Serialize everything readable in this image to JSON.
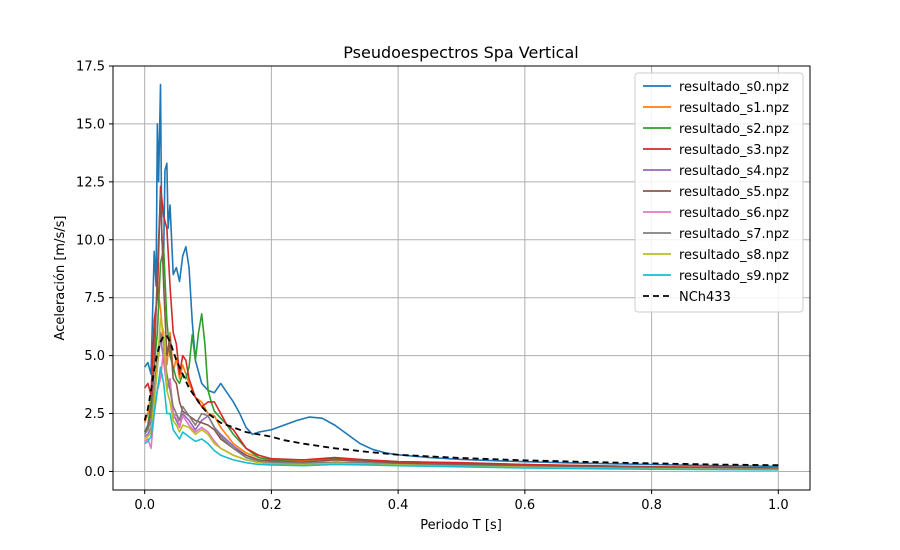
{
  "chart_data": {
    "type": "line",
    "title": "Pseudoespectros Spa Vertical",
    "xlabel": "Periodo T [s]",
    "ylabel": "Aceleración [m/s/s]",
    "xlim": [
      -0.05,
      1.05
    ],
    "ylim": [
      -0.8,
      17.5
    ],
    "xticks": [
      0.0,
      0.2,
      0.4,
      0.6,
      0.8,
      1.0
    ],
    "xtick_labels": [
      "0.0",
      "0.2",
      "0.4",
      "0.6",
      "0.8",
      "1.0"
    ],
    "yticks": [
      0.0,
      2.5,
      5.0,
      7.5,
      10.0,
      12.5,
      15.0,
      17.5
    ],
    "ytick_labels": [
      "0.0",
      "2.5",
      "5.0",
      "7.5",
      "10.0",
      "12.5",
      "15.0",
      "17.5"
    ],
    "grid": true,
    "legend_position": "top-right",
    "series": [
      {
        "name": "resultado_s0.npz",
        "color": "#1f77b4",
        "dash": "",
        "x": [
          0.0,
          0.005,
          0.01,
          0.015,
          0.018,
          0.02,
          0.022,
          0.025,
          0.027,
          0.03,
          0.032,
          0.035,
          0.037,
          0.04,
          0.045,
          0.05,
          0.055,
          0.06,
          0.065,
          0.07,
          0.075,
          0.08,
          0.09,
          0.1,
          0.11,
          0.12,
          0.13,
          0.14,
          0.15,
          0.16,
          0.17,
          0.18,
          0.2,
          0.22,
          0.24,
          0.26,
          0.28,
          0.3,
          0.32,
          0.34,
          0.36,
          0.38,
          0.4,
          0.45,
          0.5,
          0.6,
          0.7,
          0.8,
          0.9,
          1.0
        ],
        "y": [
          4.5,
          4.7,
          4.2,
          9.5,
          8.0,
          15.0,
          12.5,
          16.7,
          10.0,
          9.5,
          13.0,
          13.3,
          10.5,
          11.5,
          8.5,
          8.8,
          8.2,
          9.3,
          9.7,
          8.8,
          6.5,
          4.8,
          3.8,
          3.5,
          3.4,
          3.8,
          3.4,
          3.0,
          2.5,
          1.9,
          1.6,
          1.7,
          1.8,
          2.0,
          2.2,
          2.35,
          2.3,
          2.0,
          1.6,
          1.2,
          0.95,
          0.8,
          0.72,
          0.6,
          0.52,
          0.42,
          0.35,
          0.3,
          0.25,
          0.22
        ]
      },
      {
        "name": "resultado_s1.npz",
        "color": "#ff7f0e",
        "dash": "",
        "x": [
          0.0,
          0.005,
          0.01,
          0.015,
          0.02,
          0.025,
          0.03,
          0.035,
          0.04,
          0.045,
          0.05,
          0.055,
          0.06,
          0.07,
          0.08,
          0.09,
          0.1,
          0.11,
          0.12,
          0.14,
          0.16,
          0.18,
          0.2,
          0.25,
          0.3,
          0.35,
          0.4,
          0.5,
          0.6,
          0.7,
          0.8,
          0.9,
          1.0
        ],
        "y": [
          2.1,
          2.5,
          3.4,
          5.5,
          8.0,
          7.0,
          5.5,
          4.6,
          6.0,
          4.3,
          4.9,
          4.0,
          4.6,
          3.8,
          3.2,
          3.0,
          2.5,
          2.4,
          1.9,
          1.2,
          0.8,
          0.6,
          0.5,
          0.45,
          0.5,
          0.45,
          0.4,
          0.35,
          0.3,
          0.25,
          0.2,
          0.18,
          0.15
        ]
      },
      {
        "name": "resultado_s2.npz",
        "color": "#2ca02c",
        "dash": "",
        "x": [
          0.0,
          0.005,
          0.01,
          0.015,
          0.02,
          0.025,
          0.03,
          0.035,
          0.04,
          0.045,
          0.05,
          0.055,
          0.06,
          0.065,
          0.07,
          0.075,
          0.08,
          0.085,
          0.09,
          0.095,
          0.1,
          0.105,
          0.11,
          0.12,
          0.13,
          0.14,
          0.16,
          0.18,
          0.2,
          0.25,
          0.3,
          0.35,
          0.4,
          0.5,
          0.6,
          0.7,
          0.8,
          0.9,
          1.0
        ],
        "y": [
          1.7,
          2.0,
          3.0,
          4.5,
          6.0,
          9.0,
          9.6,
          6.5,
          5.0,
          4.5,
          4.0,
          3.8,
          4.2,
          4.0,
          4.5,
          5.9,
          4.8,
          6.0,
          6.8,
          5.5,
          3.5,
          3.0,
          2.6,
          2.3,
          2.0,
          1.6,
          1.0,
          0.6,
          0.5,
          0.5,
          0.55,
          0.5,
          0.42,
          0.35,
          0.28,
          0.22,
          0.18,
          0.15,
          0.12
        ]
      },
      {
        "name": "resultado_s3.npz",
        "color": "#d62728",
        "dash": "",
        "x": [
          0.0,
          0.005,
          0.01,
          0.015,
          0.02,
          0.025,
          0.03,
          0.035,
          0.04,
          0.045,
          0.05,
          0.055,
          0.06,
          0.065,
          0.07,
          0.075,
          0.08,
          0.09,
          0.1,
          0.11,
          0.12,
          0.13,
          0.14,
          0.16,
          0.18,
          0.2,
          0.25,
          0.3,
          0.35,
          0.4,
          0.5,
          0.6,
          0.7,
          0.8,
          0.9,
          1.0
        ],
        "y": [
          3.6,
          3.8,
          3.3,
          6.5,
          7.5,
          12.3,
          11.0,
          10.5,
          8.0,
          6.0,
          5.5,
          4.2,
          5.0,
          4.8,
          4.0,
          3.6,
          3.2,
          2.8,
          3.0,
          3.0,
          2.5,
          2.0,
          1.8,
          1.0,
          0.7,
          0.55,
          0.5,
          0.6,
          0.5,
          0.42,
          0.38,
          0.3,
          0.25,
          0.2,
          0.18,
          0.15
        ]
      },
      {
        "name": "resultado_s4.npz",
        "color": "#9467bd",
        "dash": "",
        "x": [
          0.0,
          0.005,
          0.01,
          0.015,
          0.02,
          0.025,
          0.03,
          0.035,
          0.04,
          0.045,
          0.05,
          0.055,
          0.06,
          0.07,
          0.08,
          0.09,
          0.1,
          0.11,
          0.12,
          0.14,
          0.16,
          0.18,
          0.2,
          0.25,
          0.3,
          0.35,
          0.4,
          0.5,
          0.6,
          0.7,
          0.8,
          0.9,
          1.0
        ],
        "y": [
          1.5,
          1.6,
          1.9,
          3.0,
          4.5,
          5.8,
          4.8,
          3.6,
          4.0,
          2.5,
          2.2,
          1.9,
          2.5,
          2.2,
          1.8,
          2.2,
          2.4,
          1.9,
          1.6,
          1.1,
          0.7,
          0.5,
          0.4,
          0.35,
          0.4,
          0.38,
          0.3,
          0.25,
          0.2,
          0.17,
          0.14,
          0.12,
          0.1
        ]
      },
      {
        "name": "resultado_s5.npz",
        "color": "#8c564b",
        "dash": "",
        "x": [
          0.0,
          0.005,
          0.01,
          0.015,
          0.02,
          0.025,
          0.03,
          0.035,
          0.04,
          0.045,
          0.05,
          0.055,
          0.06,
          0.07,
          0.08,
          0.09,
          0.1,
          0.11,
          0.12,
          0.14,
          0.16,
          0.18,
          0.2,
          0.25,
          0.3,
          0.35,
          0.4,
          0.5,
          0.6,
          0.7,
          0.8,
          0.9,
          1.0
        ],
        "y": [
          1.7,
          1.9,
          2.6,
          4.5,
          8.6,
          12.0,
          8.0,
          5.0,
          5.8,
          4.0,
          3.8,
          3.0,
          2.6,
          2.4,
          2.2,
          2.1,
          2.0,
          1.8,
          1.4,
          1.0,
          0.7,
          0.5,
          0.45,
          0.4,
          0.5,
          0.45,
          0.35,
          0.3,
          0.25,
          0.2,
          0.18,
          0.15,
          0.12
        ]
      },
      {
        "name": "resultado_s6.npz",
        "color": "#e377c2",
        "dash": "",
        "x": [
          0.0,
          0.005,
          0.01,
          0.015,
          0.02,
          0.025,
          0.03,
          0.035,
          0.04,
          0.045,
          0.05,
          0.055,
          0.06,
          0.07,
          0.08,
          0.09,
          0.1,
          0.11,
          0.12,
          0.14,
          0.16,
          0.18,
          0.2,
          0.25,
          0.3,
          0.35,
          0.4,
          0.5,
          0.6,
          0.7,
          0.8,
          0.9,
          1.0
        ],
        "y": [
          1.3,
          1.4,
          1.0,
          2.5,
          3.5,
          4.0,
          5.3,
          3.5,
          4.0,
          2.3,
          2.5,
          1.9,
          2.4,
          2.0,
          1.7,
          1.9,
          1.7,
          1.3,
          1.0,
          0.7,
          0.5,
          0.4,
          0.35,
          0.3,
          0.35,
          0.32,
          0.28,
          0.22,
          0.18,
          0.15,
          0.12,
          0.1,
          0.08
        ]
      },
      {
        "name": "resultado_s7.npz",
        "color": "#7f7f7f",
        "dash": "",
        "x": [
          0.0,
          0.005,
          0.01,
          0.015,
          0.02,
          0.025,
          0.03,
          0.035,
          0.04,
          0.045,
          0.05,
          0.055,
          0.06,
          0.07,
          0.08,
          0.09,
          0.1,
          0.11,
          0.12,
          0.14,
          0.16,
          0.18,
          0.2,
          0.25,
          0.3,
          0.35,
          0.4,
          0.5,
          0.6,
          0.7,
          0.8,
          0.9,
          1.0
        ],
        "y": [
          1.6,
          1.8,
          2.2,
          3.5,
          5.0,
          6.0,
          5.5,
          4.2,
          3.5,
          2.8,
          2.5,
          2.2,
          2.8,
          2.4,
          2.0,
          2.5,
          2.4,
          1.9,
          1.5,
          1.0,
          0.6,
          0.45,
          0.4,
          0.35,
          0.4,
          0.38,
          0.3,
          0.25,
          0.2,
          0.16,
          0.13,
          0.1,
          0.09
        ]
      },
      {
        "name": "resultado_s8.npz",
        "color": "#bcbd22",
        "dash": "",
        "x": [
          0.0,
          0.005,
          0.01,
          0.015,
          0.02,
          0.025,
          0.03,
          0.035,
          0.04,
          0.045,
          0.05,
          0.055,
          0.06,
          0.07,
          0.08,
          0.09,
          0.1,
          0.11,
          0.12,
          0.14,
          0.16,
          0.18,
          0.2,
          0.25,
          0.3,
          0.35,
          0.4,
          0.5,
          0.6,
          0.7,
          0.8,
          0.9,
          1.0
        ],
        "y": [
          1.4,
          1.5,
          1.7,
          3.0,
          4.5,
          6.6,
          6.0,
          3.5,
          3.0,
          2.2,
          2.0,
          1.7,
          2.0,
          1.9,
          1.6,
          1.8,
          1.6,
          1.2,
          1.0,
          0.7,
          0.5,
          0.38,
          0.32,
          0.3,
          0.35,
          0.32,
          0.28,
          0.22,
          0.18,
          0.15,
          0.12,
          0.1,
          0.08
        ]
      },
      {
        "name": "resultado_s9.npz",
        "color": "#17becf",
        "dash": "",
        "x": [
          0.0,
          0.005,
          0.01,
          0.015,
          0.02,
          0.025,
          0.03,
          0.035,
          0.04,
          0.045,
          0.05,
          0.055,
          0.06,
          0.07,
          0.08,
          0.09,
          0.1,
          0.11,
          0.12,
          0.14,
          0.16,
          0.18,
          0.2,
          0.25,
          0.3,
          0.35,
          0.4,
          0.5,
          0.6,
          0.7,
          0.8,
          0.9,
          1.0
        ],
        "y": [
          1.2,
          1.3,
          1.5,
          2.5,
          3.5,
          4.5,
          3.8,
          2.5,
          2.5,
          1.8,
          1.6,
          1.4,
          1.7,
          1.5,
          1.3,
          1.4,
          1.2,
          0.9,
          0.7,
          0.5,
          0.38,
          0.3,
          0.28,
          0.25,
          0.3,
          0.28,
          0.25,
          0.2,
          0.15,
          0.12,
          0.1,
          0.08,
          0.07
        ]
      },
      {
        "name": "NCh433",
        "color": "#000000",
        "dash": "6,4",
        "x": [
          0.0,
          0.005,
          0.01,
          0.015,
          0.02,
          0.025,
          0.03,
          0.035,
          0.04,
          0.05,
          0.06,
          0.07,
          0.08,
          0.09,
          0.1,
          0.12,
          0.14,
          0.16,
          0.18,
          0.2,
          0.22,
          0.25,
          0.3,
          0.35,
          0.4,
          0.45,
          0.5,
          0.6,
          0.7,
          0.8,
          0.9,
          1.0
        ],
        "y": [
          2.2,
          2.7,
          3.5,
          4.4,
          5.1,
          5.6,
          5.85,
          5.85,
          5.6,
          4.8,
          4.2,
          3.6,
          3.2,
          2.8,
          2.5,
          2.1,
          1.9,
          1.7,
          1.6,
          1.5,
          1.35,
          1.2,
          1.0,
          0.85,
          0.72,
          0.65,
          0.58,
          0.48,
          0.41,
          0.35,
          0.3,
          0.27
        ]
      }
    ]
  }
}
